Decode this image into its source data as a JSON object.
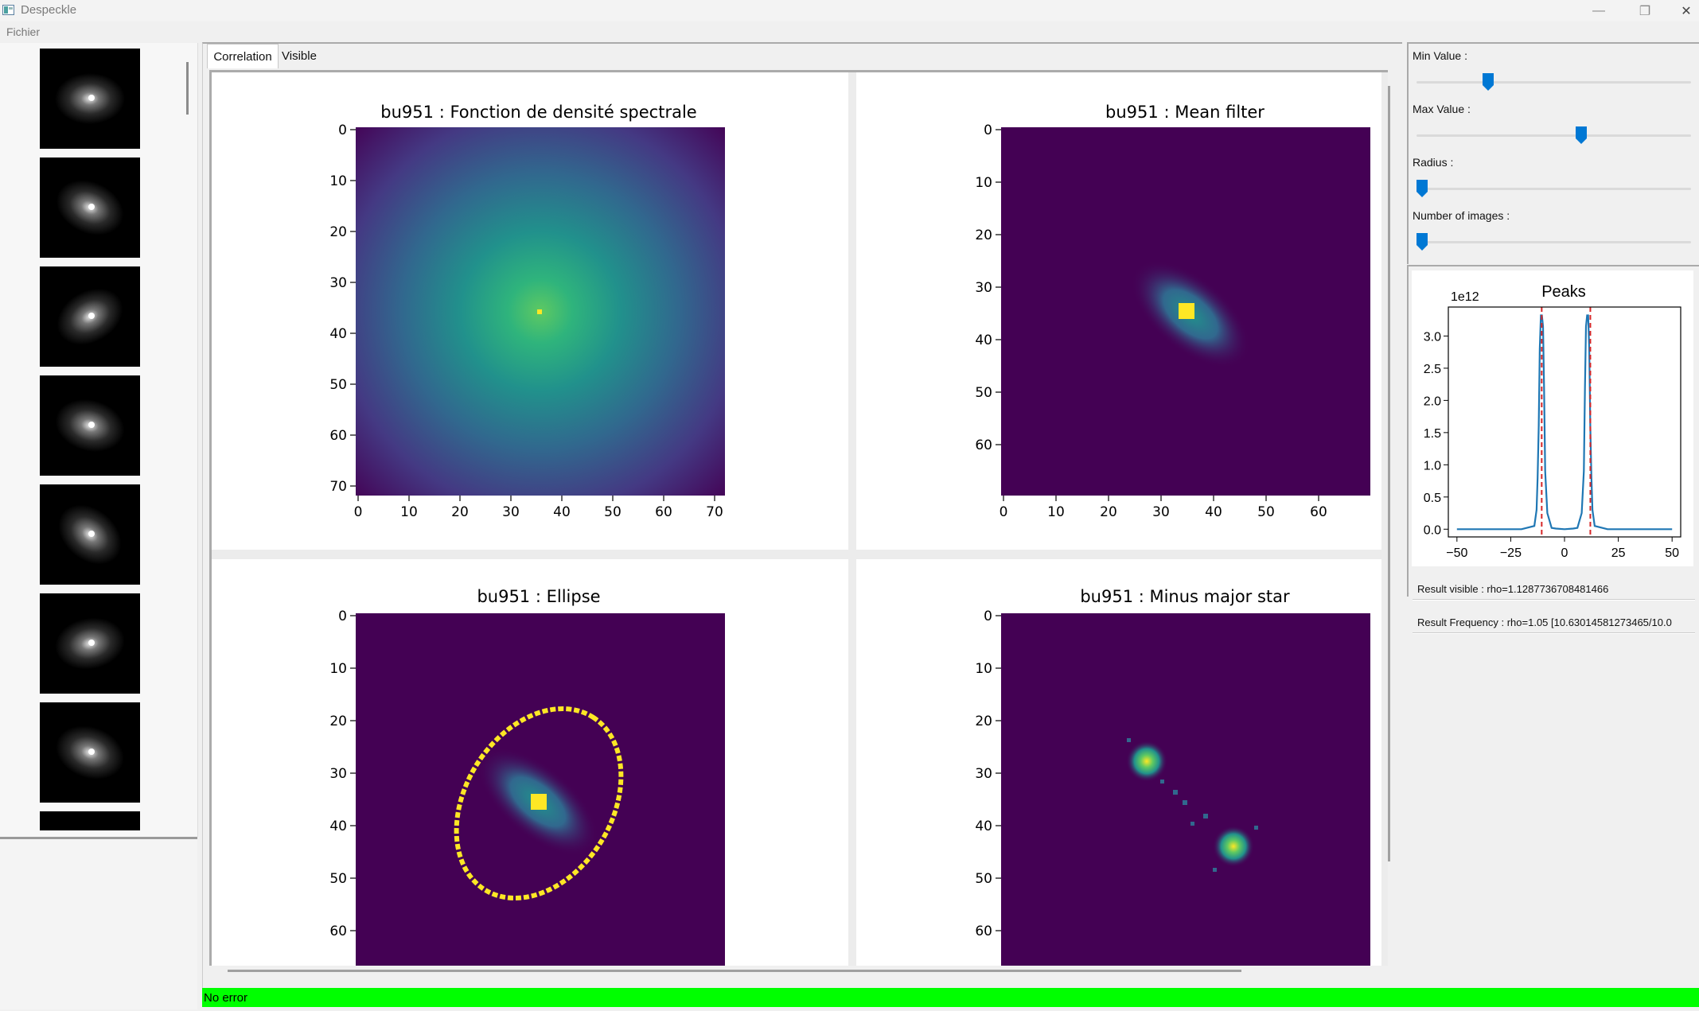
{
  "window": {
    "title": "Despeckle",
    "buttons": {
      "minimize": "—",
      "maximize": "❐",
      "close": "✕"
    }
  },
  "menu": {
    "items": [
      "Fichier"
    ]
  },
  "tabs": [
    {
      "label": "Correlation",
      "active": true
    },
    {
      "label": "Visible",
      "active": false
    }
  ],
  "figures": [
    {
      "title": "bu951 : Fonction de densité spectrale",
      "x_ticks": [
        "0",
        "10",
        "20",
        "30",
        "40",
        "50",
        "60",
        "70"
      ],
      "y_ticks": [
        "0",
        "10",
        "20",
        "30",
        "40",
        "50",
        "60",
        "70"
      ]
    },
    {
      "title": "bu951 : Mean filter",
      "x_ticks": [
        "0",
        "10",
        "20",
        "30",
        "40",
        "50",
        "60"
      ],
      "y_ticks": [
        "0",
        "10",
        "20",
        "30",
        "40",
        "50",
        "60"
      ]
    },
    {
      "title": "bu951 : Ellipse",
      "y_ticks": [
        "0",
        "10",
        "20",
        "30",
        "40",
        "50",
        "60"
      ]
    },
    {
      "title": "bu951 : Minus major star",
      "y_ticks": [
        "0",
        "10",
        "20",
        "30",
        "40",
        "50",
        "60"
      ]
    }
  ],
  "sliders": [
    {
      "label": "Min Value :",
      "position": 0.26
    },
    {
      "label": "Max Value :",
      "position": 0.6
    },
    {
      "label": "Radius :",
      "position": 0.02
    },
    {
      "label": "Number of images :",
      "position": 0.02
    }
  ],
  "peaks_chart": {
    "title": "Peaks",
    "multiplier": "1e12",
    "x_ticks": [
      "−50",
      "−25",
      "0",
      "25",
      "50"
    ],
    "y_ticks": [
      "0.0",
      "0.5",
      "1.0",
      "1.5",
      "2.0",
      "2.5",
      "3.0"
    ],
    "line_color": "#1f77b4",
    "marker_color": "#d62728"
  },
  "results": {
    "visible": "Result visible : rho=1.1287736708481466",
    "frequency": "Result Frequency : rho=1.05 [10.63014581273465/10.0"
  },
  "status": {
    "text": "No error",
    "color": "#00ff00"
  },
  "colors": {
    "viridis_dark": "#440154",
    "viridis_yellow": "#fde725"
  },
  "chart_data": {
    "type": "line",
    "title": "Peaks",
    "xlim": [
      -54,
      54
    ],
    "ylim": [
      -0.12,
      3.45
    ],
    "y_multiplier": "1e12",
    "x": [
      -50,
      -20,
      -14,
      -13,
      -12.5,
      -12,
      -11.5,
      -11,
      -10.5,
      -10,
      -9.5,
      -9,
      -8,
      -6,
      -4,
      0,
      4,
      6,
      8,
      9,
      9.5,
      10,
      10.5,
      11,
      11.5,
      12,
      12.5,
      13,
      14,
      20,
      50
    ],
    "values": [
      0,
      0,
      0.05,
      0.3,
      0.8,
      1.6,
      2.8,
      3.32,
      3.32,
      3.15,
      2.2,
      0.9,
      0.25,
      0.02,
      0.01,
      0,
      0.01,
      0.02,
      0.25,
      0.9,
      2.2,
      3.15,
      3.32,
      3.32,
      2.8,
      1.6,
      0.8,
      0.3,
      0.05,
      0,
      0
    ],
    "markers_x": [
      -10.6,
      12
    ]
  }
}
